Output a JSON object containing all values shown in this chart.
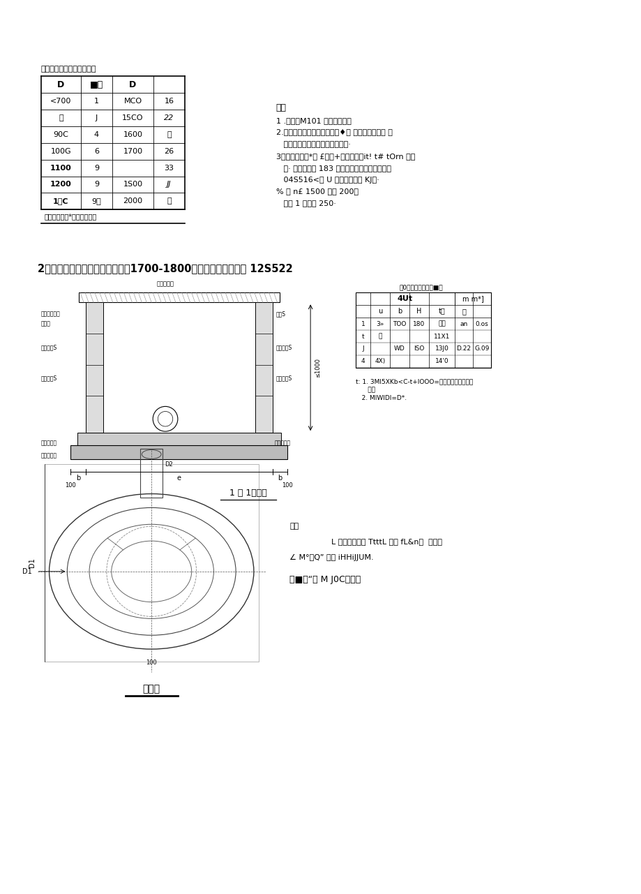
{
  "bg_color": "#ffffff",
  "page_width": 9.2,
  "page_height": 12.81,
  "section1_title": "穿墙管洞口扣除模块数量表",
  "table1_headers": [
    "D",
    "■处",
    "D",
    ""
  ],
  "table1_rows": [
    [
      "<700",
      "1",
      "MCO",
      "16"
    ],
    [
      "网",
      "J",
      "15CO",
      "22"
    ],
    [
      "90C",
      "4",
      "1600",
      "罪"
    ],
    [
      "100G",
      "6",
      "1700",
      "26"
    ],
    [
      "1100",
      "9",
      "",
      "33"
    ],
    [
      "1200",
      "9",
      "1S00",
      "JJ"
    ],
    [
      "1卷C",
      "9．",
      "2000",
      "柿"
    ]
  ],
  "table1_note": "拄：血株也債*魁（一）计脟",
  "notes_title": "注：",
  "notes": [
    "1 .席栗：M101 加心水送孙丸",
    "2.进出生在式的世首者为仙口♦， 火口不应直黑与 虾",
    "   井相接需选麟养专用息阵靠媵和·",
    "3进出技在弁的*大 £凝土+的多一节忆it! t# tOrn 鱼国",
    "   内· 货基阴录用 183 此量土基说，依法会见图集",
    "   04S516<副 U 静水仪基砖贴 KJ》·",
    "% 加 n£ 1500 比罚 200；",
    "   细心 1 皿谒尸 250·"
  ],
  "section2_title": "2、混凝土模块式雨水圆形检查乷1700-1800细部构造做法：图集 12S522",
  "side_table_title": "挢0各郡尺寸及工程■表",
  "side_table_h1": "4Ut",
  "side_table_h2": "m m*]",
  "side_table_headers2": [
    "",
    "u",
    "b",
    "H",
    "t也",
    "注"
  ],
  "side_data": [
    [
      "1",
      "3»",
      "TOO",
      "180",
      "可加",
      "an",
      "0.os"
    ],
    [
      "t",
      "加",
      "",
      "",
      "11X1",
      "",
      ""
    ],
    [
      "J",
      "",
      "WD",
      "ISO",
      "13J0",
      "D.22",
      "G.09"
    ],
    [
      "4",
      "4X)",
      "",
      "",
      "14'0",
      "",
      ""
    ]
  ],
  "side_table_note1": "t: 1. 3MI5XKb<C-t+lOOO=申下曲背北邦井等，",
  "side_table_note2": "      大心",
  "side_table_note3": "   2. MIWIDI=D*.",
  "label_1_2_100": "1 二 1即百图",
  "plan_label": "平面图",
  "bottom_text1": "也一",
  "bottom_text2": "L 星必怀：干的 TtttL 制秩 fL&n；  闺肝肌",
  "bottom_text3": "∠ M°，Q” 见头 iHHiJJUM.",
  "bottom_text4": "泉■土“取 M J0C：。。"
}
